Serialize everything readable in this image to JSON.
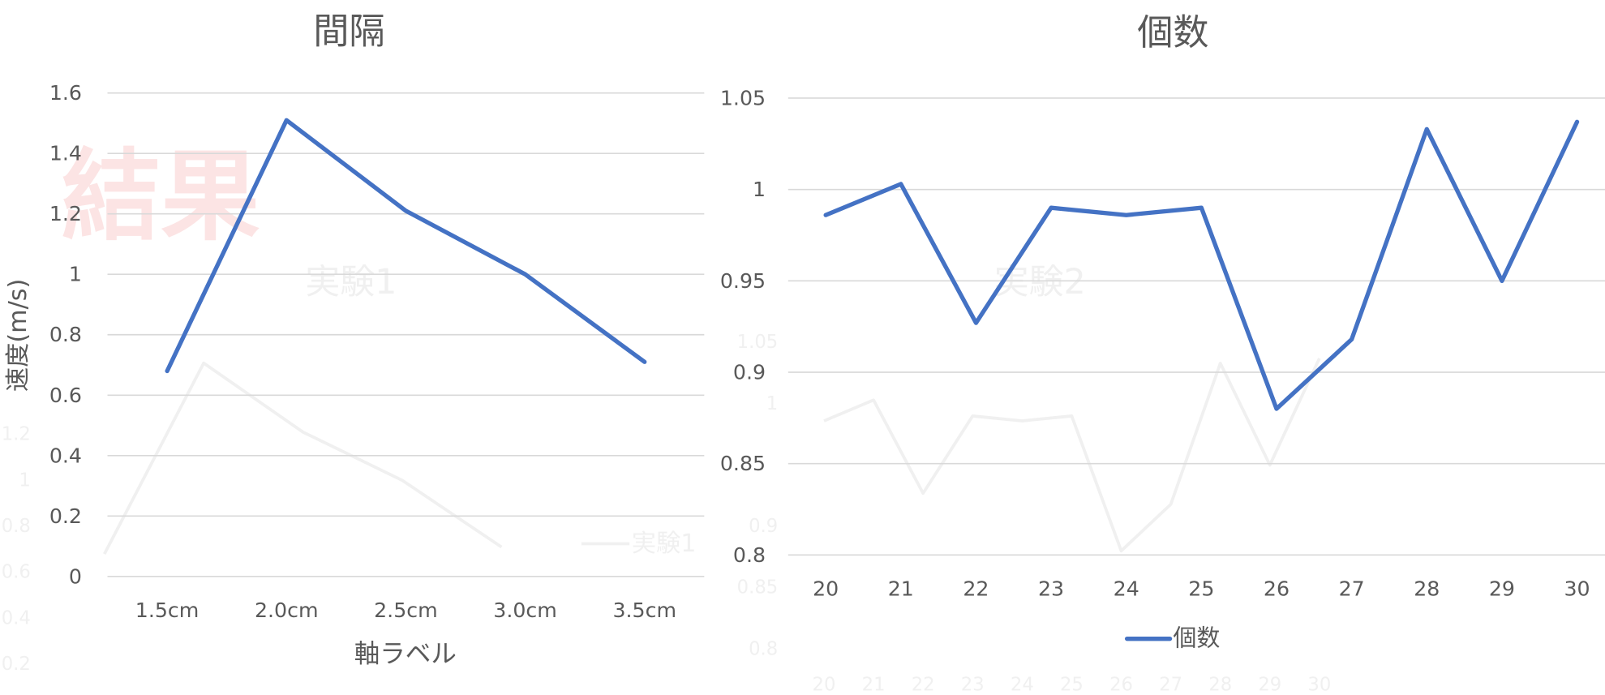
{
  "watermark": {
    "text": "結果",
    "color": "#fce4e4"
  },
  "background_overlay": {
    "left_title": "実験1",
    "right_title": "実験2",
    "legend_label": "実験1",
    "left_yticks": [
      "1.2",
      "1",
      "0.8",
      "0.6",
      "0.4",
      "0.2"
    ],
    "right_yticks": [
      "1.05",
      "1",
      "0.9",
      "0.85",
      "0.8"
    ],
    "text_color": "#f0f0f0"
  },
  "chart_data": [
    {
      "type": "line",
      "title": "間隔",
      "xlabel": "軸ラベル",
      "ylabel": "速度(m/s)",
      "categories": [
        "1.5cm",
        "2.0cm",
        "2.5cm",
        "3.0cm",
        "3.5cm"
      ],
      "series": [
        {
          "values": [
            0.68,
            1.51,
            1.21,
            1.0,
            0.71
          ],
          "color": "#4472C4"
        }
      ],
      "ylim": [
        0,
        1.6
      ],
      "yticks": [
        "0",
        "0.2",
        "0.4",
        "0.6",
        "0.8",
        "1",
        "1.2",
        "1.4",
        "1.6"
      ],
      "grid": true,
      "legend": "none"
    },
    {
      "type": "line",
      "title": "個数",
      "categories": [
        "20",
        "21",
        "22",
        "23",
        "24",
        "25",
        "26",
        "27",
        "28",
        "29",
        "30"
      ],
      "series": [
        {
          "name": "個数",
          "values": [
            0.986,
            1.003,
            0.927,
            0.99,
            0.986,
            0.99,
            0.88,
            0.918,
            1.033,
            0.95,
            1.037
          ],
          "color": "#4472C4"
        }
      ],
      "ylim": [
        0.8,
        1.05
      ],
      "yticks": [
        "0.8",
        "0.85",
        "0.9",
        "0.95",
        "1",
        "1.05"
      ],
      "grid": true,
      "legend": "bottom"
    }
  ]
}
